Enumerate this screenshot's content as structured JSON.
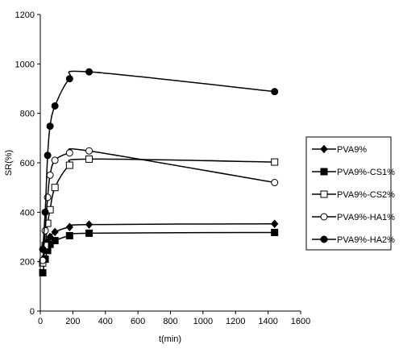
{
  "chart_data": {
    "type": "scatter",
    "title": "",
    "xlabel": "t(min)",
    "ylabel": "SR(%)",
    "xlim": [
      0,
      1600
    ],
    "ylim": [
      0,
      1200
    ],
    "xticks": [
      0,
      200,
      400,
      600,
      800,
      1000,
      1200,
      1400,
      1600
    ],
    "yticks": [
      0,
      200,
      400,
      600,
      800,
      1000,
      1200
    ],
    "grid": false,
    "legend": "right",
    "series": [
      {
        "name": "PVA9%",
        "marker": "diamond",
        "fill": "#000000",
        "x": [
          15,
          30,
          45,
          60,
          90,
          180,
          300,
          1440
        ],
        "y": [
          195,
          250,
          280,
          300,
          320,
          340,
          350,
          353
        ]
      },
      {
        "name": "PVA9%-CS1%",
        "marker": "square",
        "fill": "#000000",
        "x": [
          15,
          30,
          45,
          60,
          90,
          180,
          300,
          1440
        ],
        "y": [
          155,
          210,
          245,
          270,
          285,
          305,
          315,
          318
        ]
      },
      {
        "name": "PVA9%-CS2%",
        "marker": "square",
        "fill": "#ffffff",
        "x": [
          15,
          30,
          45,
          60,
          90,
          180,
          300,
          1440
        ],
        "y": [
          195,
          265,
          355,
          410,
          500,
          590,
          615,
          603
        ]
      },
      {
        "name": "PVA9%-HA1%",
        "marker": "circle",
        "fill": "#ffffff",
        "x": [
          15,
          30,
          45,
          60,
          90,
          180,
          300,
          1440
        ],
        "y": [
          205,
          325,
          460,
          550,
          610,
          640,
          648,
          520
        ]
      },
      {
        "name": "PVA9%-HA2%",
        "marker": "circle",
        "fill": "#000000",
        "x": [
          15,
          30,
          45,
          60,
          90,
          180,
          300,
          1440
        ],
        "y": [
          250,
          400,
          630,
          748,
          830,
          940,
          968,
          888
        ]
      }
    ]
  }
}
